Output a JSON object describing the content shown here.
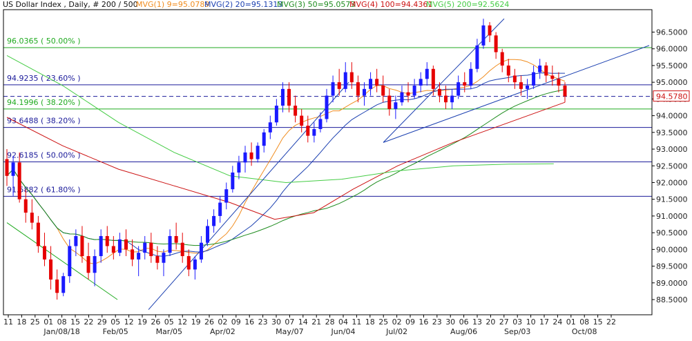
{
  "header": {
    "title": "US Dollar Index , Daily, # 200 / 500",
    "indicators": [
      {
        "label": "MVG(1) 9=95.0789",
        "color": "#f08c1e"
      },
      {
        "label": "MVG(2) 20=95.1313",
        "color": "#1a3fb0"
      },
      {
        "label": "MVG(3) 50=95.0573",
        "color": "#1e8c1e"
      },
      {
        "label": "MVG(4) 100=94.4361",
        "color": "#cc1111"
      },
      {
        "label": "MVG(5) 200=92.5624",
        "color": "#44cc44"
      }
    ]
  },
  "current_price": "94.5780",
  "colors": {
    "up": "#1a1aff",
    "down": "#e60000",
    "fib_green": "#1faa1f",
    "fib_blue": "#1a1a9a",
    "trend": "#1a3fb0"
  },
  "chart_data": {
    "type": "candlestick",
    "title": "US Dollar Index , Daily, # 200 / 500",
    "ylim": [
      88.0,
      97.0
    ],
    "y_ticks": [
      "96.5000",
      "96.0000",
      "95.5000",
      "95.0000",
      "94.5000",
      "94.0000",
      "93.5000",
      "93.0000",
      "92.5000",
      "92.0000",
      "91.5000",
      "91.0000",
      "90.5000",
      "90.0000",
      "89.5000",
      "89.0000",
      "88.5000"
    ],
    "y_tick_values": [
      96.5,
      96.0,
      95.5,
      95.0,
      94.5,
      94.0,
      93.5,
      93.0,
      92.5,
      92.0,
      91.5,
      91.0,
      90.5,
      90.0,
      89.5,
      89.0,
      88.5
    ],
    "x_ticks": [
      "11",
      "18",
      "25",
      "01",
      "08",
      "15",
      "22",
      "29",
      "05",
      "12",
      "19",
      "26",
      "05",
      "12",
      "19",
      "26",
      "02",
      "09",
      "16",
      "23",
      "30",
      "07",
      "14",
      "21",
      "28",
      "04",
      "11",
      "18",
      "25",
      "02",
      "09",
      "16",
      "23",
      "30",
      "06",
      "13",
      "20",
      "27",
      "03",
      "10",
      "17",
      "24",
      "01",
      "08",
      "15",
      "22"
    ],
    "month_labels": [
      {
        "label": "Jan/08/18",
        "tick": 4
      },
      {
        "label": "Feb/05",
        "tick": 8
      },
      {
        "label": "Mar/05",
        "tick": 12
      },
      {
        "label": "Apr/02",
        "tick": 16
      },
      {
        "label": "May/07",
        "tick": 21
      },
      {
        "label": "Jun/04",
        "tick": 25
      },
      {
        "label": "Jul/02",
        "tick": 29
      },
      {
        "label": "Aug/06",
        "tick": 34
      },
      {
        "label": "Sep/03",
        "tick": 38
      },
      {
        "label": "Oct/08",
        "tick": 43
      }
    ],
    "fib_levels": [
      {
        "label": "96.0365 ( 50.00% )",
        "value": 96.0365,
        "color": "#1faa1f"
      },
      {
        "label": "94.9235 ( 23.60% )",
        "value": 94.9235,
        "color": "#1a1a9a"
      },
      {
        "label": "94.1996 ( 38.20% )",
        "value": 94.1996,
        "color": "#1faa1f"
      },
      {
        "label": "93.6488 ( 38.20% )",
        "value": 93.6488,
        "color": "#1a1a9a"
      },
      {
        "label": "92.6185 ( 50.00% )",
        "value": 92.6185,
        "color": "#1a1a9a"
      },
      {
        "label": "91.5882 ( 61.80% )",
        "value": 91.5882,
        "color": "#1a1a9a"
      }
    ],
    "price_line": 94.578,
    "candles": [
      [
        92.7,
        93.0,
        91.9,
        92.2
      ],
      [
        92.2,
        92.8,
        91.6,
        92.6
      ],
      [
        92.6,
        92.9,
        91.4,
        91.5
      ],
      [
        91.5,
        91.8,
        90.8,
        91.1
      ],
      [
        91.1,
        91.5,
        90.6,
        90.8
      ],
      [
        90.8,
        91.0,
        89.9,
        90.1
      ],
      [
        90.1,
        90.5,
        89.5,
        89.7
      ],
      [
        89.7,
        90.1,
        88.8,
        89.1
      ],
      [
        89.1,
        89.4,
        88.5,
        88.7
      ],
      [
        88.7,
        89.3,
        88.6,
        89.2
      ],
      [
        89.2,
        90.3,
        89.0,
        90.1
      ],
      [
        90.1,
        90.6,
        89.8,
        90.4
      ],
      [
        90.4,
        90.7,
        89.6,
        89.8
      ],
      [
        89.8,
        90.2,
        89.1,
        89.3
      ],
      [
        89.3,
        90.0,
        88.9,
        89.8
      ],
      [
        89.8,
        90.6,
        89.6,
        90.4
      ],
      [
        90.4,
        90.7,
        89.9,
        90.1
      ],
      [
        90.1,
        90.4,
        89.7,
        89.9
      ],
      [
        89.9,
        90.5,
        89.8,
        90.3
      ],
      [
        90.3,
        90.6,
        89.8,
        90.0
      ],
      [
        90.0,
        90.3,
        89.5,
        89.7
      ],
      [
        89.7,
        90.1,
        89.2,
        89.9
      ],
      [
        89.9,
        90.4,
        89.7,
        90.2
      ],
      [
        90.2,
        90.5,
        89.6,
        89.8
      ],
      [
        89.8,
        90.1,
        89.4,
        89.6
      ],
      [
        89.6,
        90.0,
        89.2,
        89.9
      ],
      [
        89.9,
        90.6,
        89.8,
        90.4
      ],
      [
        90.4,
        90.8,
        90.0,
        90.2
      ],
      [
        90.2,
        90.5,
        89.6,
        89.8
      ],
      [
        89.8,
        90.0,
        89.2,
        89.4
      ],
      [
        89.4,
        89.8,
        89.1,
        89.7
      ],
      [
        89.7,
        90.4,
        89.6,
        90.2
      ],
      [
        90.2,
        90.9,
        90.1,
        90.7
      ],
      [
        90.7,
        91.2,
        90.5,
        91.0
      ],
      [
        91.0,
        91.6,
        90.8,
        91.4
      ],
      [
        91.4,
        92.0,
        91.2,
        91.8
      ],
      [
        91.8,
        92.5,
        91.7,
        92.3
      ],
      [
        92.3,
        92.8,
        92.1,
        92.6
      ],
      [
        92.6,
        93.1,
        92.3,
        92.9
      ],
      [
        92.9,
        93.2,
        92.5,
        92.7
      ],
      [
        92.7,
        93.2,
        92.6,
        93.1
      ],
      [
        93.1,
        93.6,
        92.9,
        93.5
      ],
      [
        93.5,
        94.0,
        93.3,
        93.8
      ],
      [
        93.8,
        94.5,
        93.7,
        94.3
      ],
      [
        94.3,
        95.0,
        94.1,
        94.8
      ],
      [
        94.8,
        95.0,
        94.1,
        94.3
      ],
      [
        94.3,
        94.6,
        93.8,
        94.0
      ],
      [
        94.0,
        94.2,
        93.5,
        93.7
      ],
      [
        93.7,
        94.0,
        93.2,
        93.4
      ],
      [
        93.4,
        93.8,
        93.2,
        93.6
      ],
      [
        93.6,
        94.1,
        93.5,
        93.9
      ],
      [
        93.9,
        94.8,
        93.8,
        94.6
      ],
      [
        94.6,
        95.2,
        94.4,
        95.0
      ],
      [
        95.0,
        95.4,
        94.6,
        94.8
      ],
      [
        94.8,
        95.6,
        94.7,
        95.3
      ],
      [
        95.3,
        95.6,
        94.8,
        95.0
      ],
      [
        95.0,
        95.2,
        94.4,
        94.6
      ],
      [
        94.6,
        95.0,
        94.3,
        94.8
      ],
      [
        94.8,
        95.3,
        94.6,
        95.1
      ],
      [
        95.1,
        95.4,
        94.7,
        94.9
      ],
      [
        94.9,
        95.2,
        94.4,
        94.6
      ],
      [
        94.6,
        94.8,
        94.0,
        94.2
      ],
      [
        94.2,
        94.6,
        93.9,
        94.4
      ],
      [
        94.4,
        94.9,
        94.3,
        94.7
      ],
      [
        94.7,
        95.0,
        94.4,
        94.6
      ],
      [
        94.6,
        95.1,
        94.5,
        94.9
      ],
      [
        94.9,
        95.3,
        94.7,
        95.1
      ],
      [
        95.1,
        95.6,
        94.9,
        95.4
      ],
      [
        95.4,
        95.5,
        94.6,
        94.8
      ],
      [
        94.8,
        95.0,
        94.4,
        94.6
      ],
      [
        94.6,
        94.9,
        94.2,
        94.4
      ],
      [
        94.4,
        94.8,
        94.2,
        94.6
      ],
      [
        94.6,
        95.2,
        94.5,
        95.0
      ],
      [
        95.0,
        95.3,
        94.7,
        94.9
      ],
      [
        94.9,
        95.6,
        94.8,
        95.4
      ],
      [
        95.4,
        96.3,
        95.3,
        96.1
      ],
      [
        96.1,
        96.9,
        96.0,
        96.7
      ],
      [
        96.7,
        96.8,
        96.2,
        96.4
      ],
      [
        96.4,
        96.5,
        95.7,
        95.9
      ],
      [
        95.9,
        96.0,
        95.3,
        95.5
      ],
      [
        95.5,
        95.7,
        95.0,
        95.2
      ],
      [
        95.2,
        95.4,
        94.8,
        95.0
      ],
      [
        95.0,
        95.2,
        94.6,
        94.8
      ],
      [
        94.8,
        95.1,
        94.5,
        94.9
      ],
      [
        94.9,
        95.5,
        94.8,
        95.3
      ],
      [
        95.3,
        95.7,
        95.1,
        95.5
      ],
      [
        95.5,
        95.6,
        95.0,
        95.2
      ],
      [
        95.2,
        95.5,
        94.9,
        95.1
      ],
      [
        95.1,
        95.3,
        94.7,
        94.9
      ],
      [
        94.9,
        95.0,
        94.4,
        94.58
      ]
    ]
  }
}
